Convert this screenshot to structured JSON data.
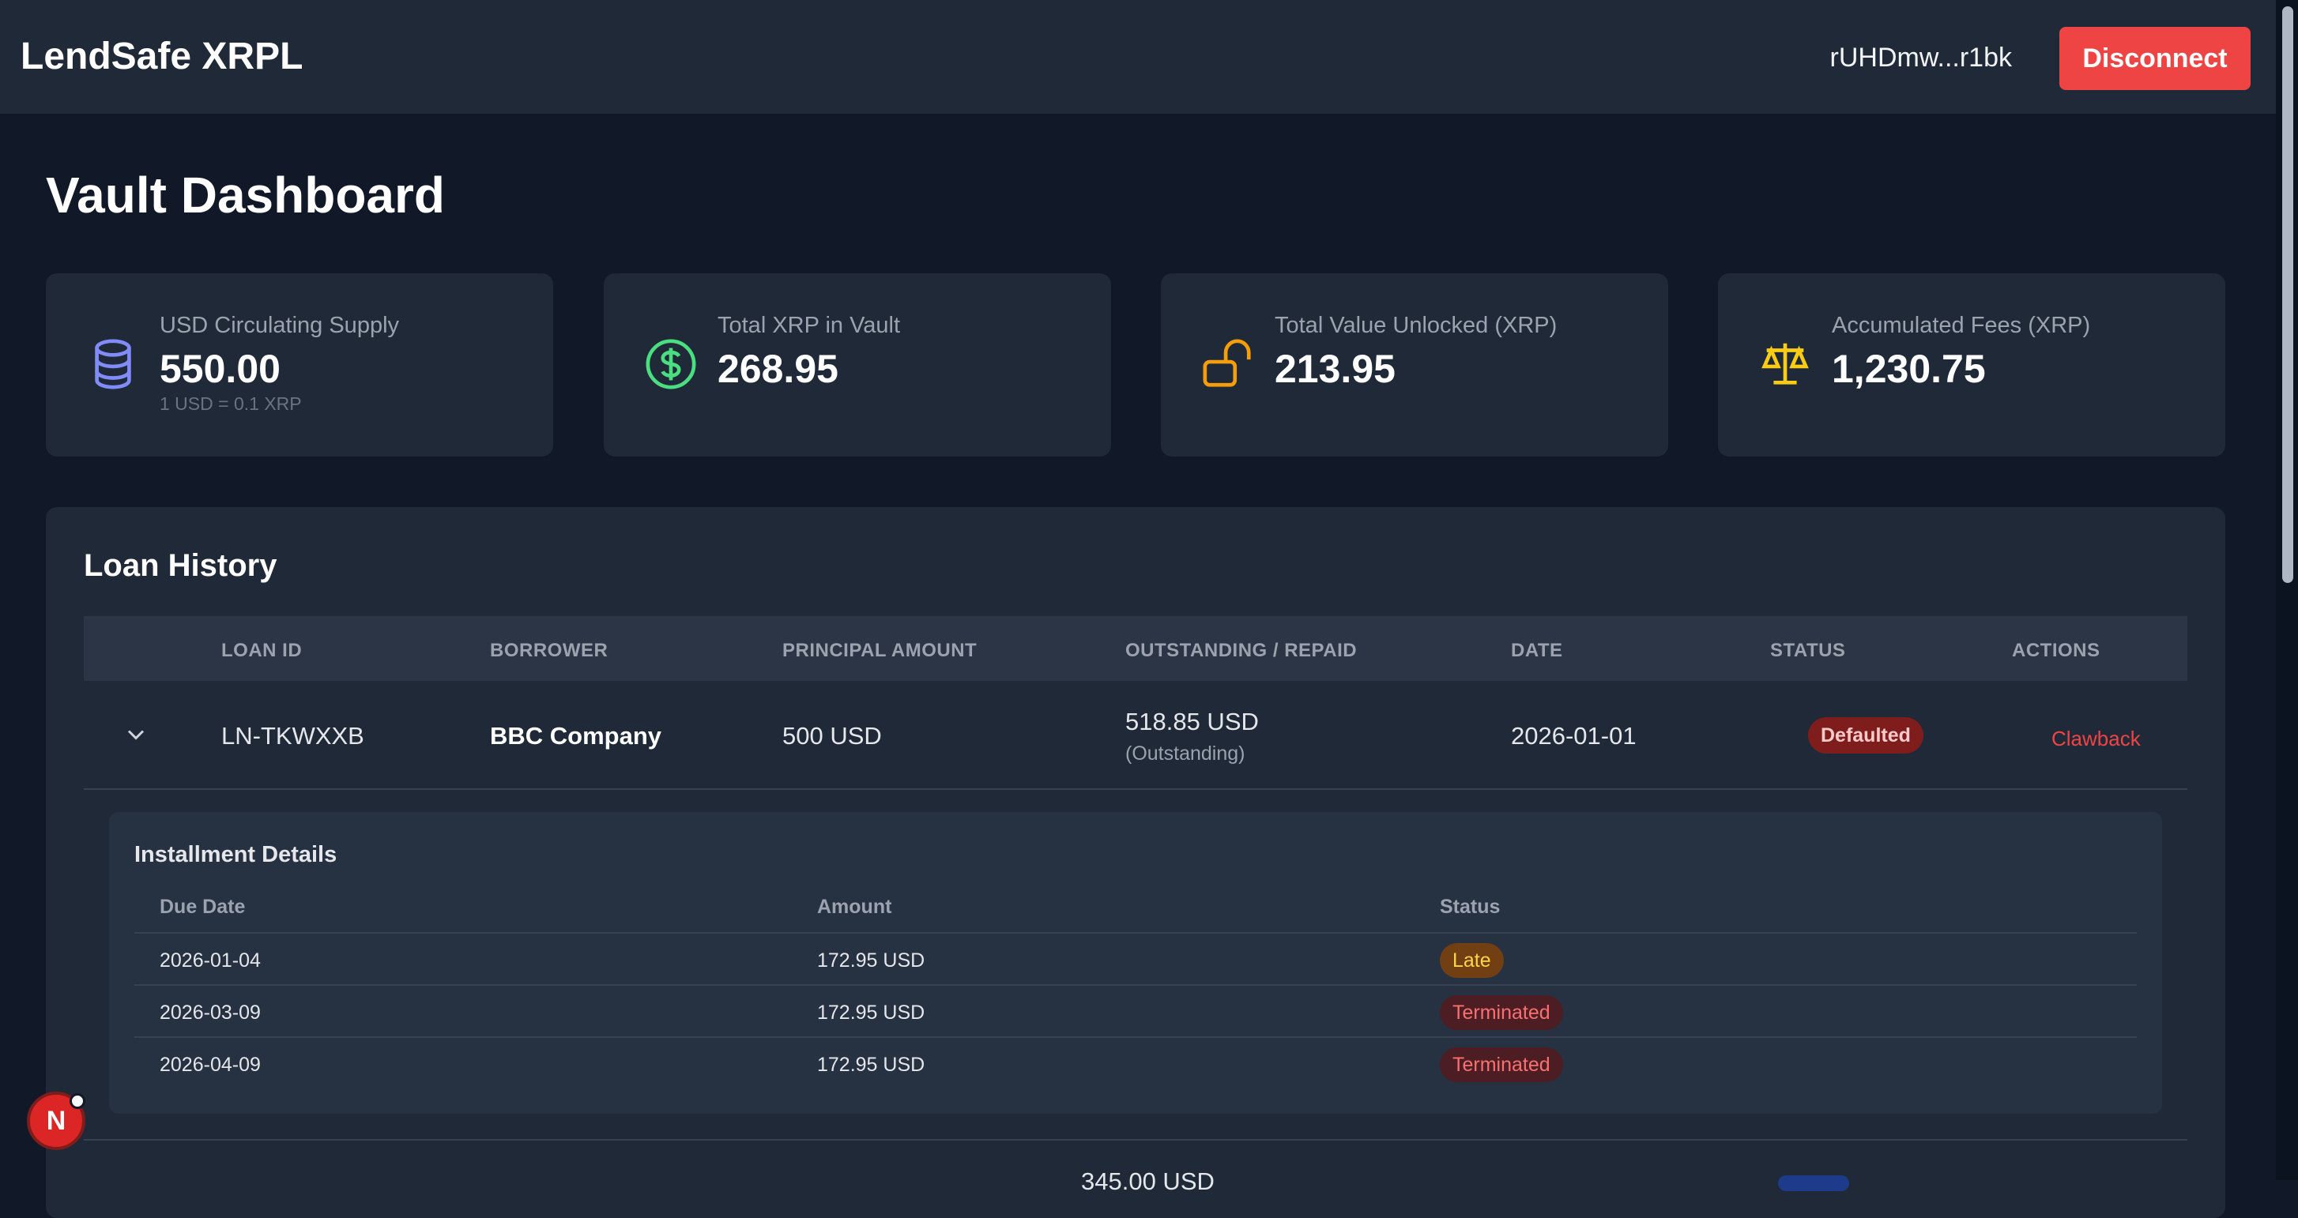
{
  "header": {
    "brand": "LendSafe XRPL",
    "wallet_address": "rUHDmw...r1bk",
    "disconnect_label": "Disconnect"
  },
  "page": {
    "title": "Vault Dashboard"
  },
  "stats": [
    {
      "label": "USD Circulating Supply",
      "value": "550.00",
      "sub": "1 USD = 0.1 XRP",
      "icon": "database-icon",
      "color": "#818cf8"
    },
    {
      "label": "Total XRP in Vault",
      "value": "268.95",
      "sub": "",
      "icon": "dollar-circle-icon",
      "color": "#4ade80"
    },
    {
      "label": "Total Value Unlocked (XRP)",
      "value": "213.95",
      "sub": "",
      "icon": "unlock-icon",
      "color": "#f59e0b"
    },
    {
      "label": "Accumulated Fees (XRP)",
      "value": "1,230.75",
      "sub": "",
      "icon": "scale-icon",
      "color": "#facc15"
    }
  ],
  "loans": {
    "title": "Loan History",
    "columns": [
      "LOAN ID",
      "BORROWER",
      "PRINCIPAL AMOUNT",
      "OUTSTANDING / REPAID",
      "DATE",
      "STATUS",
      "ACTIONS"
    ],
    "rows": [
      {
        "loan_id": "LN-TKWXXB",
        "borrower": "BBC Company",
        "principal": "500 USD",
        "outstanding": "518.85 USD",
        "outstanding_note": "(Outstanding)",
        "date": "2026-01-01",
        "status": "Defaulted",
        "action": "Clawback"
      }
    ],
    "next_row_outstanding_partial": "345.00 USD"
  },
  "installments": {
    "title": "Installment Details",
    "columns": [
      "Due Date",
      "Amount",
      "Status"
    ],
    "rows": [
      {
        "due_date": "2026-01-04",
        "amount": "172.95 USD",
        "status": "Late"
      },
      {
        "due_date": "2026-03-09",
        "amount": "172.95 USD",
        "status": "Terminated"
      },
      {
        "due_date": "2026-04-09",
        "amount": "172.95 USD",
        "status": "Terminated"
      }
    ]
  },
  "user_avatar": {
    "initial": "N"
  },
  "colors": {
    "accent_red": "#ef4444",
    "card_bg": "#1f2937",
    "page_bg": "#111827"
  }
}
